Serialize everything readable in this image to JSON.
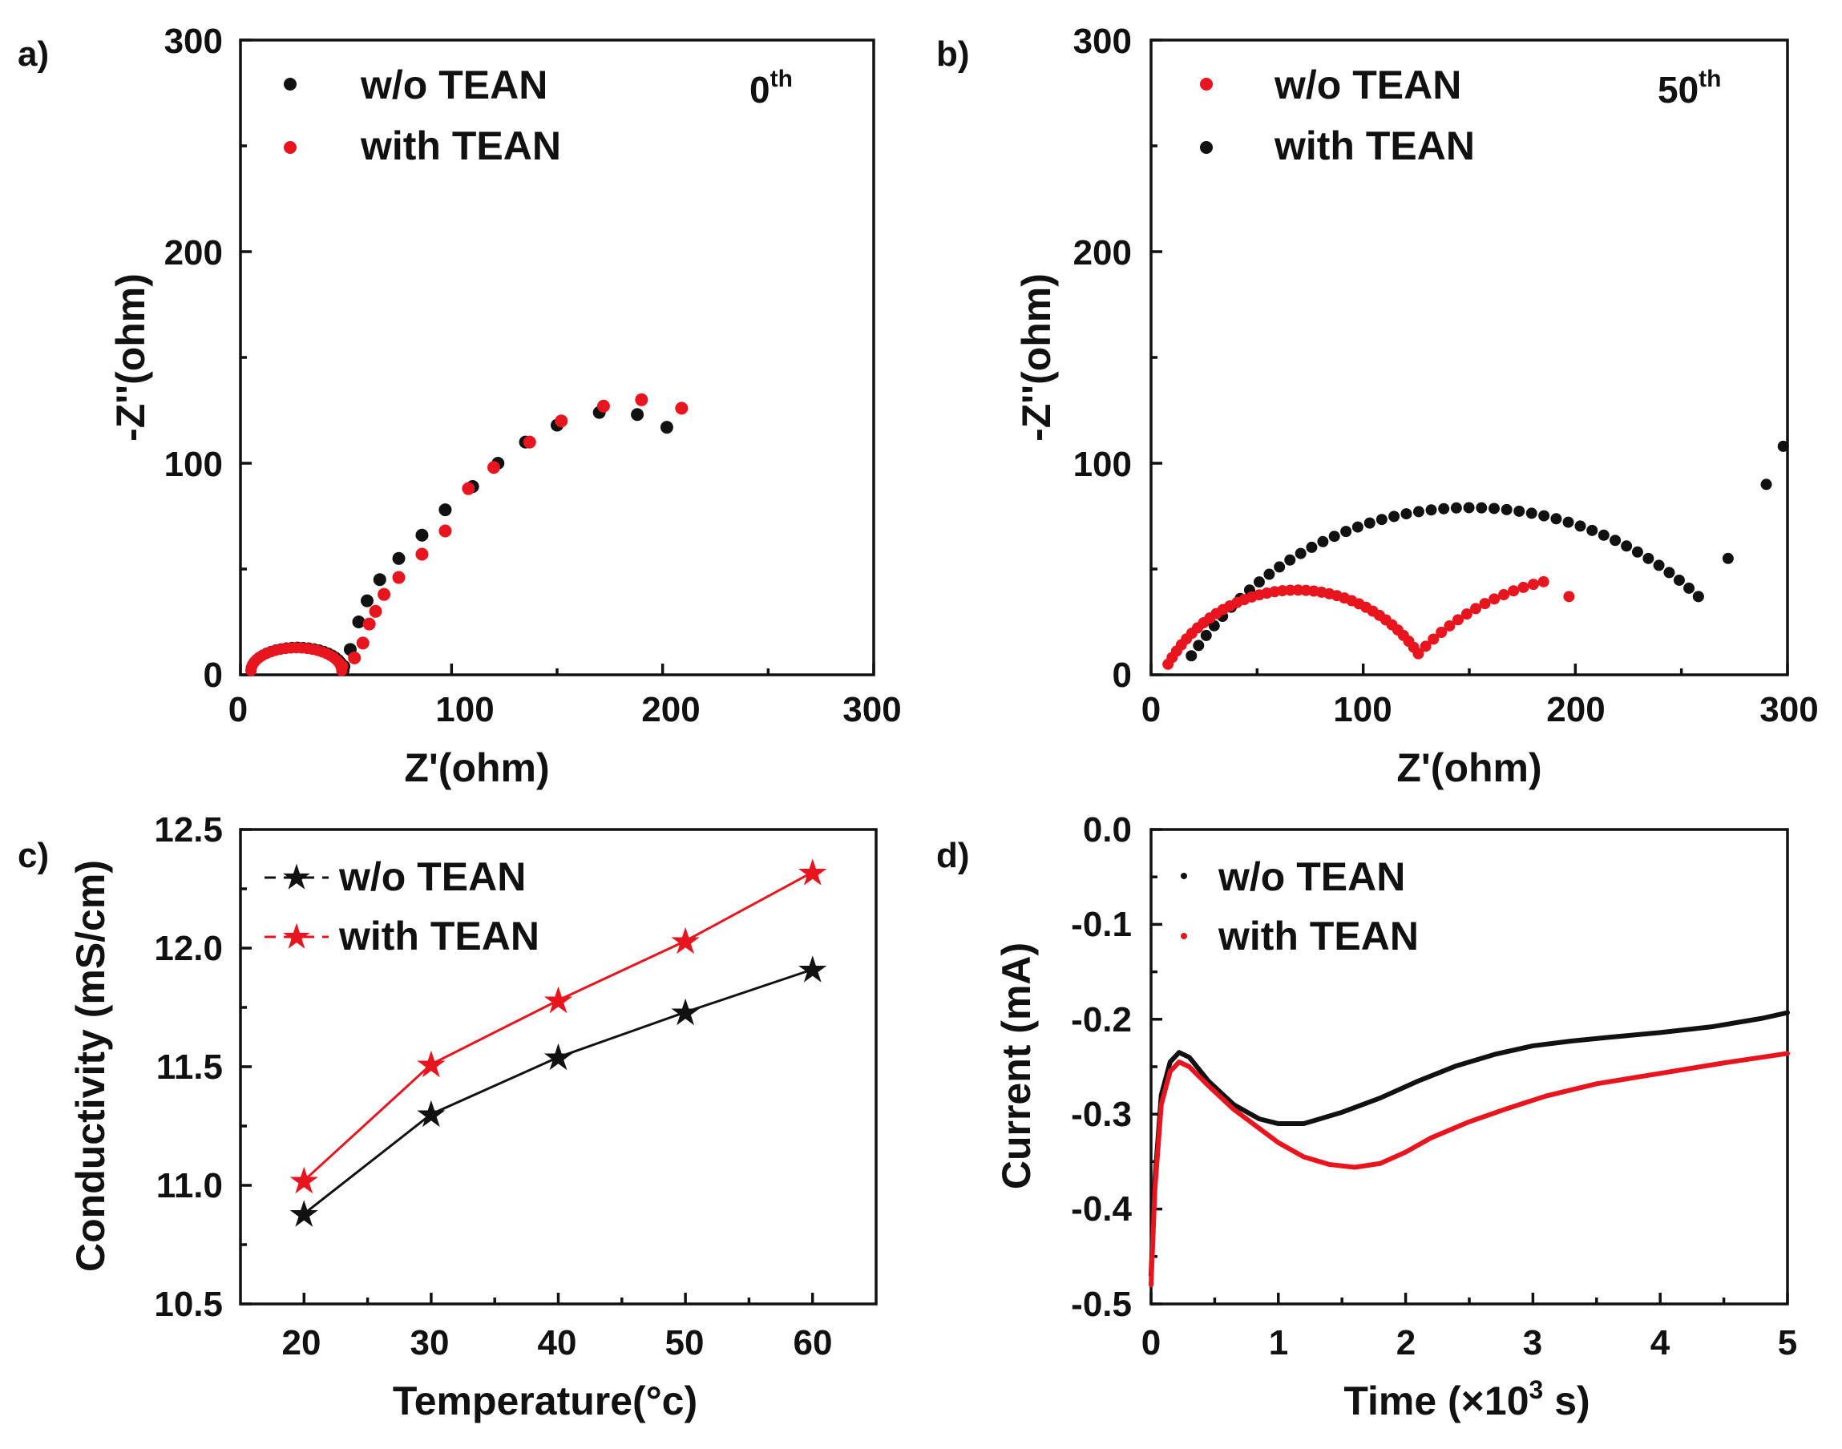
{
  "colors": {
    "black": "#111111",
    "red": "#e8141e"
  },
  "chart_data": [
    {
      "panel": "a)",
      "type": "scatter",
      "annotation": {
        "base": "0",
        "sup": "th"
      },
      "xlabel": "Z'(ohm)",
      "ylabel": "-Z''(ohm)",
      "xlim": [
        0,
        300
      ],
      "ylim": [
        0,
        300
      ],
      "xticks": [
        0,
        100,
        200,
        300
      ],
      "yticks": [
        0,
        100,
        200,
        300
      ],
      "series": [
        {
          "name": "w/o TEAN",
          "color": "black",
          "shape": "semicircle_spur",
          "x0": 5,
          "x1": 49,
          "spur": [
            [
              49,
              4
            ],
            [
              52,
              12
            ],
            [
              56,
              25
            ],
            [
              60,
              35
            ],
            [
              66,
              45
            ],
            [
              75,
              55
            ],
            [
              86,
              66
            ],
            [
              97,
              78
            ],
            [
              110,
              89
            ],
            [
              122,
              100
            ],
            [
              135,
              110
            ],
            [
              150,
              118
            ],
            [
              170,
              124
            ],
            [
              188,
              123
            ],
            [
              202,
              117
            ]
          ]
        },
        {
          "name": "with TEAN",
          "color": "red",
          "shape": "semicircle_spur",
          "x0": 5,
          "x1": 48,
          "spur": [
            [
              48,
              4
            ],
            [
              54,
              8
            ],
            [
              58,
              15
            ],
            [
              61,
              24
            ],
            [
              64,
              30
            ],
            [
              68,
              38
            ],
            [
              75,
              46
            ],
            [
              86,
              57
            ],
            [
              97,
              68
            ],
            [
              108,
              88
            ],
            [
              120,
              98
            ],
            [
              137,
              110
            ],
            [
              152,
              120
            ],
            [
              172,
              127
            ],
            [
              190,
              130
            ],
            [
              209,
              126
            ]
          ]
        }
      ]
    },
    {
      "panel": "b)",
      "type": "scatter",
      "annotation": {
        "base": "50",
        "sup": "th"
      },
      "xlabel": "Z'(ohm)",
      "ylabel": "-Z''(ohm)",
      "xlim": [
        0,
        300
      ],
      "ylim": [
        0,
        300
      ],
      "xticks": [
        0,
        100,
        200,
        300
      ],
      "yticks": [
        0,
        100,
        200,
        300
      ],
      "series": [
        {
          "name": "w/o TEAN",
          "color": "red",
          "shape": "two_arcs",
          "points_arc1": [
            [
              8,
              5
            ],
            [
              66,
              40
            ],
            [
              126,
              10
            ]
          ],
          "points_arc2": [
            [
              126,
              10
            ],
            [
              160,
              35
            ],
            [
              185,
              44
            ],
            [
              197,
              37
            ]
          ]
        },
        {
          "name": "with TEAN",
          "color": "black",
          "shape": "two_arcs",
          "points_arc1": [
            [
              19,
              9
            ],
            [
              150,
              79
            ],
            [
              258,
              37
            ]
          ],
          "points_arc2": [
            [
              258,
              37
            ],
            [
              272,
              55
            ],
            [
              290,
              90
            ],
            [
              298,
              108
            ]
          ]
        }
      ]
    },
    {
      "panel": "c)",
      "type": "line",
      "xlabel": "Temperature(°c)",
      "ylabel": "Conductivity (mS/cm)",
      "xlim": [
        15,
        65
      ],
      "ylim": [
        10.5,
        12.5
      ],
      "xticks": [
        20,
        30,
        40,
        50,
        60
      ],
      "yticks": [
        "10.5",
        "11.0",
        "11.5",
        "12.0",
        "12.5"
      ],
      "x": [
        20,
        30,
        40,
        50,
        60
      ],
      "series": [
        {
          "name": "w/o TEAN",
          "color": "black",
          "values": [
            10.88,
            11.3,
            11.54,
            11.73,
            11.91
          ]
        },
        {
          "name": "with TEAN",
          "color": "red",
          "values": [
            11.02,
            11.51,
            11.78,
            12.03,
            12.32
          ]
        }
      ]
    },
    {
      "panel": "d)",
      "type": "line",
      "xlabel": {
        "main": "Time (×10",
        "sup": "3",
        "tail": " s)"
      },
      "ylabel": "Current (mA)",
      "xlim": [
        0,
        5
      ],
      "ylim": [
        -0.5,
        0.0
      ],
      "xticks": [
        0,
        1,
        2,
        3,
        4,
        5
      ],
      "yticks": [
        "-0.5",
        "-0.4",
        "-0.3",
        "-0.2",
        "-0.1",
        "0.0"
      ],
      "series": [
        {
          "name": "w/o TEAN",
          "color": "black",
          "x": [
            0,
            0.03,
            0.08,
            0.15,
            0.22,
            0.3,
            0.45,
            0.65,
            0.85,
            1.0,
            1.2,
            1.5,
            1.8,
            2.1,
            2.4,
            2.7,
            3.0,
            3.3,
            3.6,
            4.0,
            4.4,
            4.8,
            5.0
          ],
          "values": [
            -0.47,
            -0.37,
            -0.28,
            -0.245,
            -0.235,
            -0.24,
            -0.265,
            -0.29,
            -0.305,
            -0.31,
            -0.31,
            -0.298,
            -0.283,
            -0.265,
            -0.249,
            -0.237,
            -0.228,
            -0.223,
            -0.219,
            -0.214,
            -0.208,
            -0.199,
            -0.193
          ]
        },
        {
          "name": "with TEAN",
          "color": "red",
          "x": [
            0,
            0.03,
            0.08,
            0.15,
            0.22,
            0.3,
            0.45,
            0.65,
            0.85,
            1.0,
            1.2,
            1.4,
            1.6,
            1.8,
            2.0,
            2.2,
            2.5,
            2.8,
            3.1,
            3.5,
            4.0,
            4.5,
            5.0
          ],
          "values": [
            -0.48,
            -0.38,
            -0.29,
            -0.255,
            -0.245,
            -0.25,
            -0.27,
            -0.295,
            -0.315,
            -0.33,
            -0.345,
            -0.353,
            -0.356,
            -0.352,
            -0.34,
            -0.325,
            -0.308,
            -0.294,
            -0.281,
            -0.268,
            -0.257,
            -0.246,
            -0.236
          ]
        }
      ]
    }
  ]
}
